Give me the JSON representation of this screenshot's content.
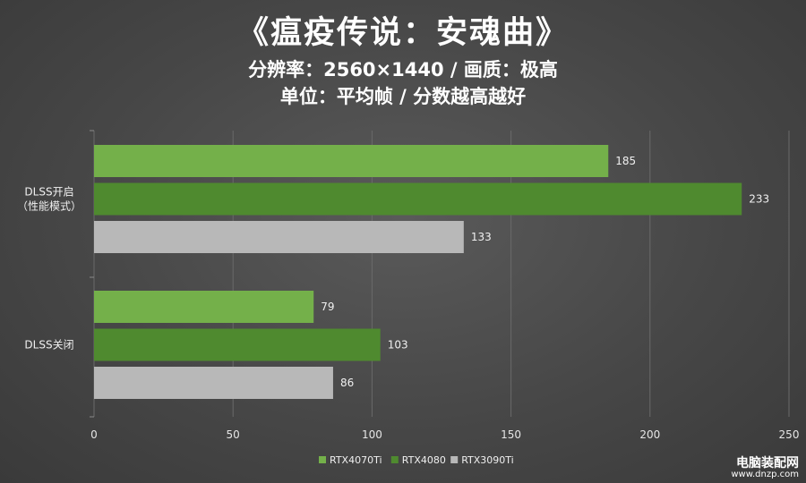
{
  "header": {
    "title": "《瘟疫传说：安魂曲》",
    "subtitle1": "分辨率：2560×1440 / 画质：极高",
    "subtitle2": "单位：平均帧 / 分数越高越好"
  },
  "watermark": {
    "cn": "电脑装配网",
    "url": "www.dnzp.com"
  },
  "chart_data": {
    "type": "bar",
    "orientation": "horizontal",
    "categories": [
      "DLSS开启\n（性能模式）",
      "DLSS关闭"
    ],
    "series": [
      {
        "name": "RTX4070Ti",
        "values": [
          185,
          79
        ],
        "color": "#74b04a"
      },
      {
        "name": "RTX4080",
        "values": [
          233,
          103
        ],
        "color": "#4f8a2f"
      },
      {
        "name": "RTX3090Ti",
        "values": [
          133,
          86
        ],
        "color": "#b8b8b8"
      }
    ],
    "xlim": [
      0,
      250
    ],
    "xticks": [
      0,
      50,
      100,
      150,
      200,
      250
    ],
    "grid": true,
    "data_labels": true,
    "legend": "bottom"
  }
}
